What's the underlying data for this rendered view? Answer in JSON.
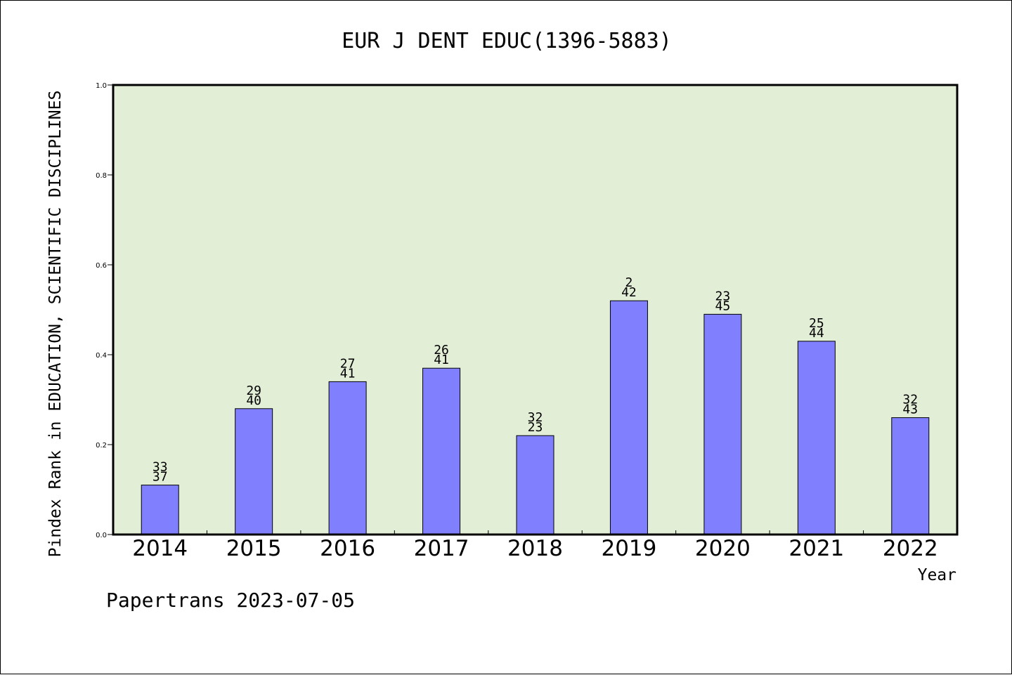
{
  "chart_data": {
    "type": "bar",
    "title": "EUR J DENT EDUC(1396-5883)",
    "xlabel": "Year",
    "ylabel": "Pindex Rank in EDUCATION, SCIENTIFIC DISCIPLINES",
    "categories": [
      "2014",
      "2015",
      "2016",
      "2017",
      "2018",
      "2019",
      "2020",
      "2021",
      "2022"
    ],
    "values": [
      0.11,
      0.28,
      0.34,
      0.37,
      0.22,
      0.52,
      0.49,
      0.43,
      0.26
    ],
    "labels_top": [
      "33",
      "29",
      "27",
      "26",
      "32",
      "2",
      "23",
      "25",
      "32"
    ],
    "labels_bottom": [
      "37",
      "40",
      "41",
      "41",
      "23",
      "42",
      "45",
      "44",
      "43"
    ],
    "ylim": [
      0.0,
      1.0
    ],
    "yticks": [
      "0.0",
      "0.2",
      "0.4",
      "0.6",
      "0.8",
      "1.0"
    ],
    "grid": false,
    "colors": {
      "plot_bg": "#e2efd6",
      "bar": "#8080ff",
      "bar_edge": "#000000"
    }
  },
  "footer": {
    "credit": "Papertrans 2023-07-05"
  }
}
